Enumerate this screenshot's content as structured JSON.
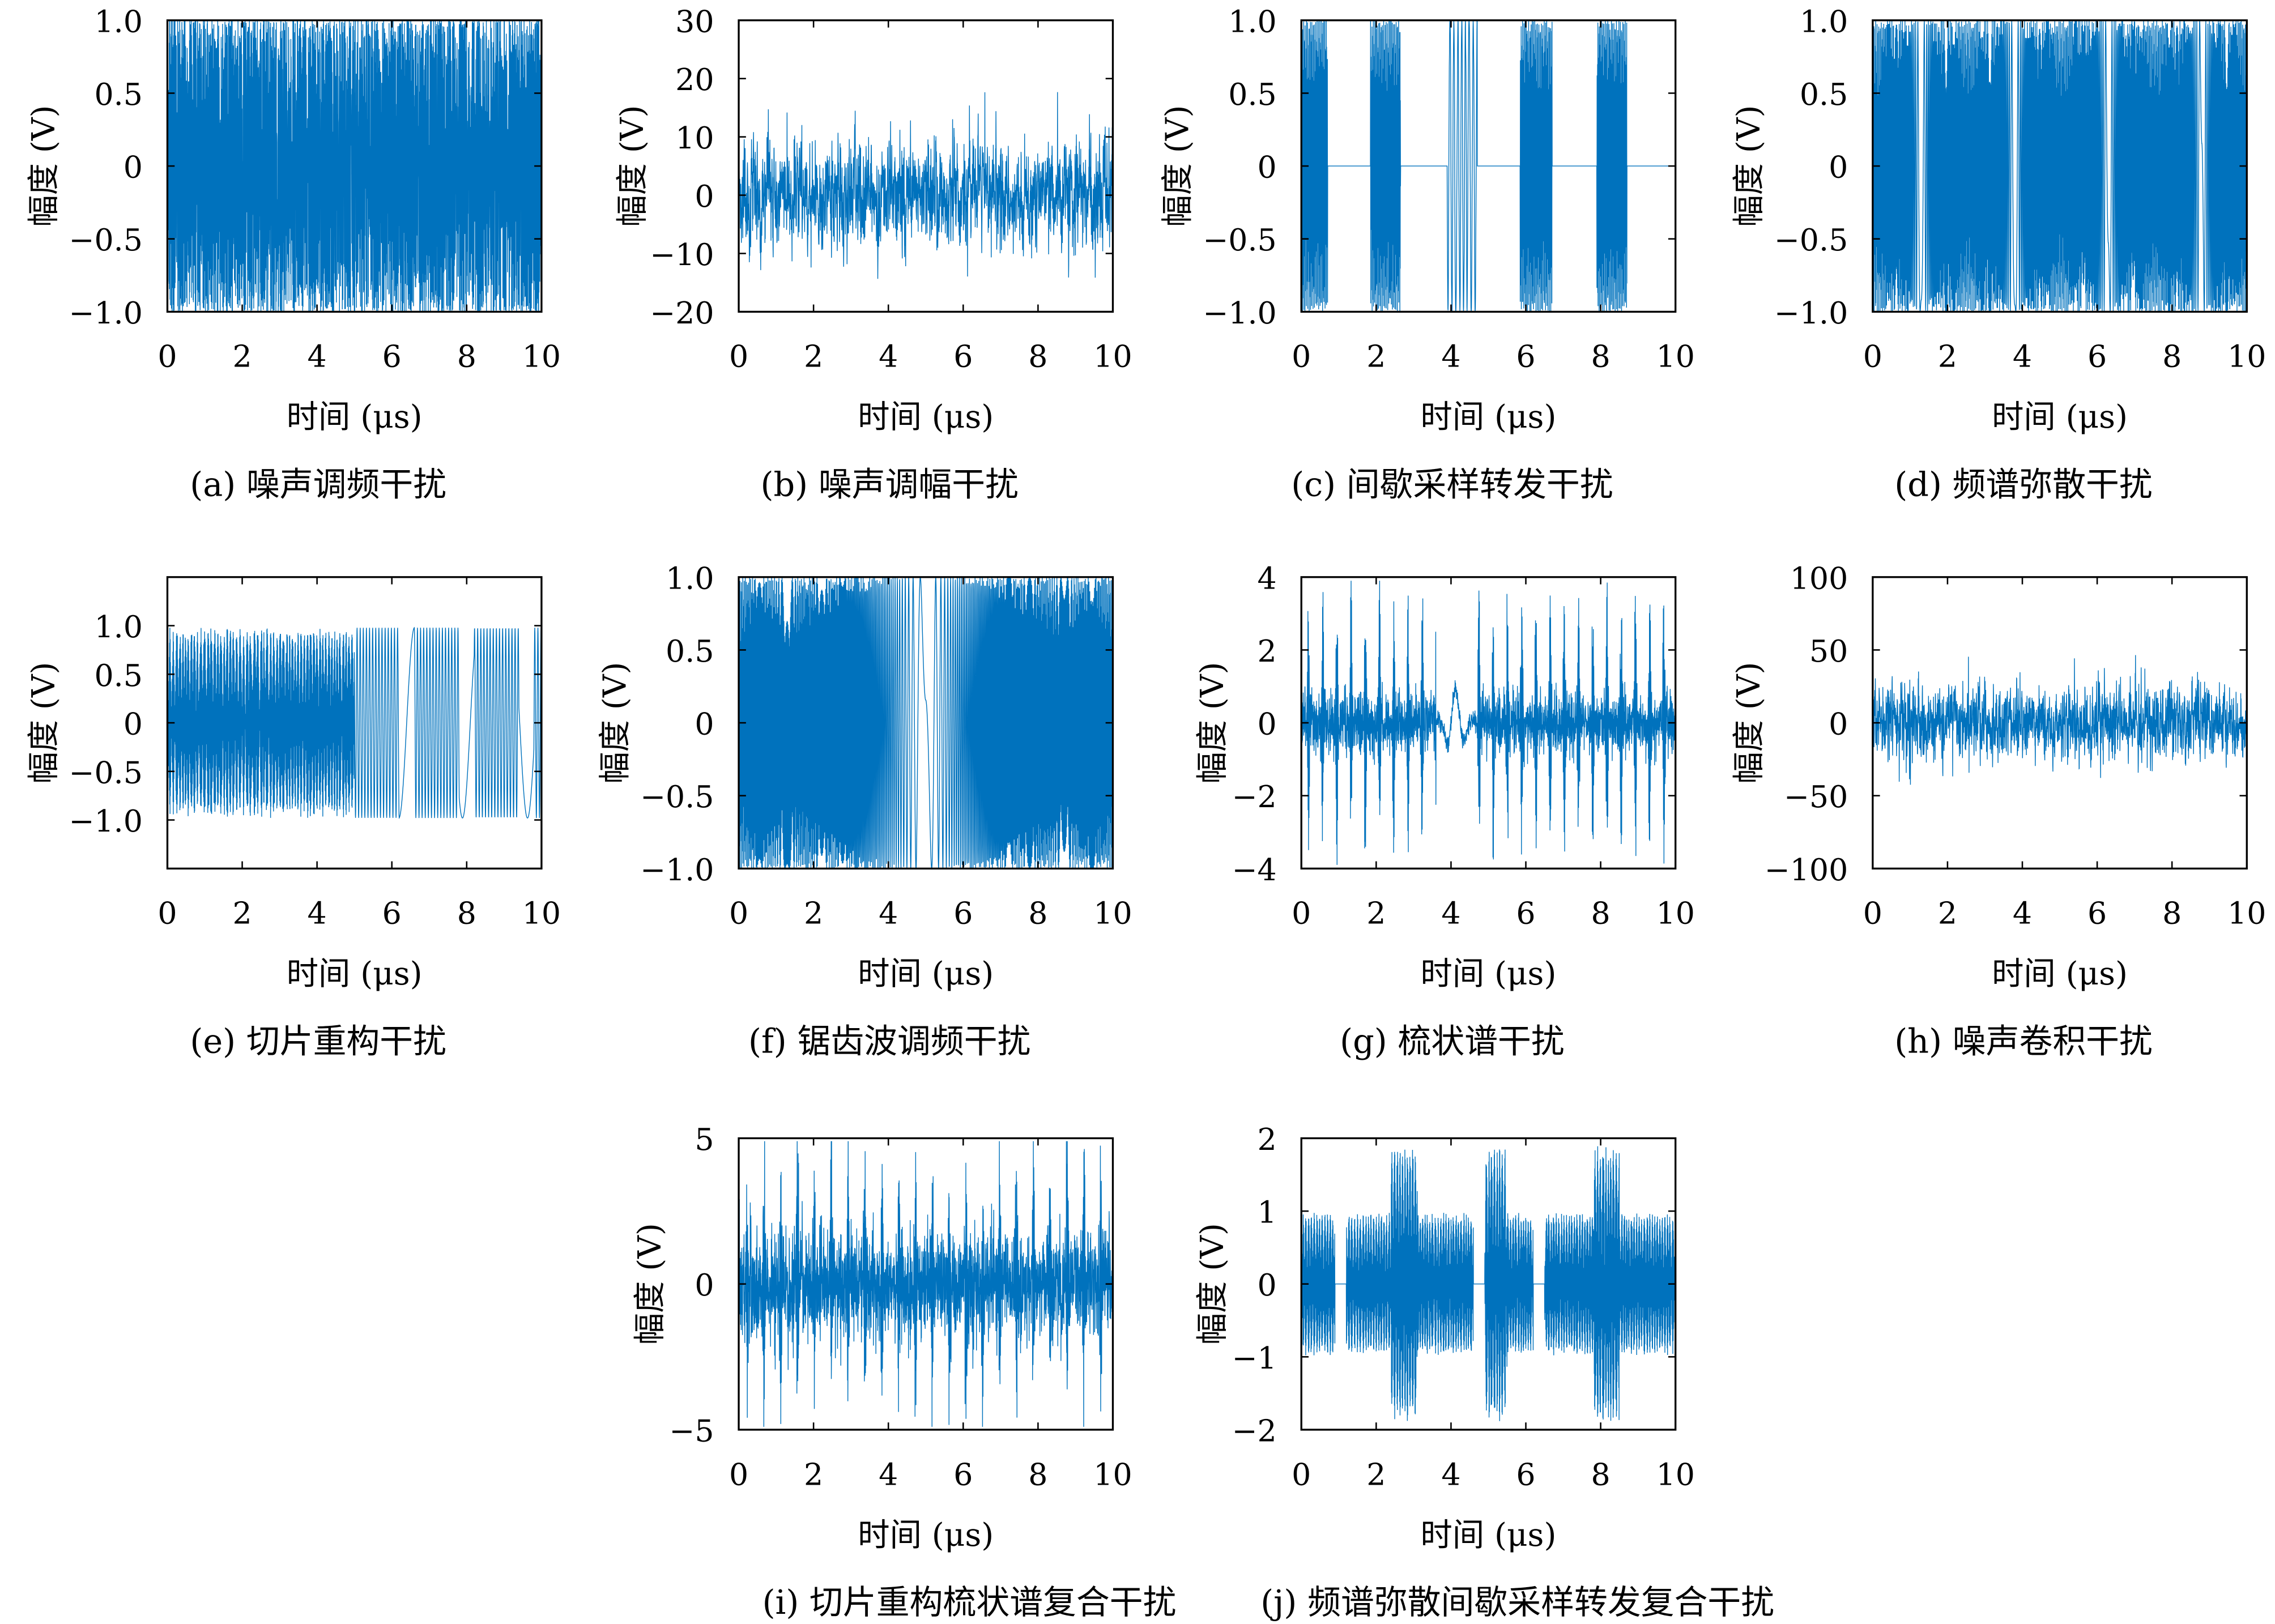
{
  "line_color": "#0072BD",
  "chart_data": [
    {
      "id": "a",
      "type": "line",
      "title": "(a) 噪声调频干扰",
      "xlabel": "时间 (μs)",
      "ylabel": "幅度 (V)",
      "xlim": [
        0,
        10
      ],
      "ylim": [
        -1,
        1
      ],
      "xticks": [
        "0",
        "2",
        "4",
        "6",
        "8",
        "10"
      ],
      "yticks": [
        {
          "v": 1,
          "t": "1.0"
        },
        {
          "v": 0.5,
          "t": "0.5"
        },
        {
          "v": 0,
          "t": "0"
        },
        {
          "v": -0.5,
          "t": "−0.5"
        },
        {
          "v": -1,
          "t": "−1.0"
        }
      ]
    },
    {
      "id": "b",
      "type": "line",
      "title": "(b) 噪声调幅干扰",
      "xlabel": "时间 (μs)",
      "ylabel": "幅度 (V)",
      "xlim": [
        0,
        10
      ],
      "ylim": [
        -20,
        30
      ],
      "xticks": [
        "0",
        "2",
        "4",
        "6",
        "8",
        "10"
      ],
      "yticks": [
        {
          "v": 30,
          "t": "30"
        },
        {
          "v": 20,
          "t": "20"
        },
        {
          "v": 10,
          "t": "10"
        },
        {
          "v": 0,
          "t": "0"
        },
        {
          "v": -10,
          "t": "−10"
        },
        {
          "v": -20,
          "t": "−20"
        }
      ]
    },
    {
      "id": "c",
      "type": "line",
      "title": "(c) 间歇采样转发干扰",
      "xlabel": "时间 (μs)",
      "ylabel": "幅度 (V)",
      "xlim": [
        0,
        10
      ],
      "ylim": [
        -1,
        1
      ],
      "xticks": [
        "0",
        "2",
        "4",
        "6",
        "8",
        "10"
      ],
      "yticks": [
        {
          "v": 1,
          "t": "1.0"
        },
        {
          "v": 0.5,
          "t": "0.5"
        },
        {
          "v": 0,
          "t": "0"
        },
        {
          "v": -0.5,
          "t": "−0.5"
        },
        {
          "v": -1,
          "t": "−1.0"
        }
      ],
      "sampling_windows": [
        [
          0,
          0.7
        ],
        [
          1.85,
          2.65
        ],
        [
          3.9,
          4.7
        ],
        [
          5.85,
          6.7
        ],
        [
          7.9,
          8.7
        ]
      ]
    },
    {
      "id": "d",
      "type": "line",
      "title": "(d) 频谱弥散干扰",
      "xlabel": "时间 (μs)",
      "ylabel": "幅度 (V)",
      "xlim": [
        0,
        10
      ],
      "ylim": [
        -1,
        1
      ],
      "xticks": [
        "0",
        "2",
        "4",
        "6",
        "8",
        "10"
      ],
      "yticks": [
        {
          "v": 1,
          "t": "1.0"
        },
        {
          "v": 0.5,
          "t": "0.5"
        },
        {
          "v": 0,
          "t": "0"
        },
        {
          "v": -0.5,
          "t": "−0.5"
        },
        {
          "v": -1,
          "t": "−1.0"
        }
      ]
    },
    {
      "id": "e",
      "type": "line",
      "title": "(e) 切片重构干扰",
      "xlabel": "时间 (μs)",
      "ylabel": "幅度 (V)",
      "xlim": [
        0,
        10
      ],
      "ylim": [
        -1.5,
        1.5
      ],
      "xticks": [
        "0",
        "2",
        "4",
        "6",
        "8",
        "10"
      ],
      "yticks": [
        {
          "v": 1,
          "t": "1.0"
        },
        {
          "v": 0.5,
          "t": "0.5"
        },
        {
          "v": 0,
          "t": "0"
        },
        {
          "v": -0.5,
          "t": "−0.5"
        },
        {
          "v": -1,
          "t": "−1.0"
        }
      ]
    },
    {
      "id": "f",
      "type": "line",
      "title": "(f) 锯齿波调频干扰",
      "xlabel": "时间 (μs)",
      "ylabel": "幅度 (V)",
      "xlim": [
        0,
        10
      ],
      "ylim": [
        -1,
        1
      ],
      "xticks": [
        "0",
        "2",
        "4",
        "6",
        "8",
        "10"
      ],
      "yticks": [
        {
          "v": 1,
          "t": "1.0"
        },
        {
          "v": 0.5,
          "t": "0.5"
        },
        {
          "v": 0,
          "t": "0"
        },
        {
          "v": -0.5,
          "t": "−0.5"
        },
        {
          "v": -1,
          "t": "−1.0"
        }
      ]
    },
    {
      "id": "g",
      "type": "line",
      "title": "(g) 梳状谱干扰",
      "xlabel": "时间 (μs)",
      "ylabel": "幅度 (V)",
      "xlim": [
        0,
        10
      ],
      "ylim": [
        -4,
        4
      ],
      "xticks": [
        "0",
        "2",
        "4",
        "6",
        "8",
        "10"
      ],
      "yticks": [
        {
          "v": 4,
          "t": "4"
        },
        {
          "v": 2,
          "t": "2"
        },
        {
          "v": 0,
          "t": "0"
        },
        {
          "v": -2,
          "t": "−2"
        },
        {
          "v": -4,
          "t": "−4"
        }
      ]
    },
    {
      "id": "h",
      "type": "line",
      "title": "(h) 噪声卷积干扰",
      "xlabel": "时间 (μs)",
      "ylabel": "幅度 (V)",
      "xlim": [
        0,
        10
      ],
      "ylim": [
        -100,
        100
      ],
      "xticks": [
        "0",
        "2",
        "4",
        "6",
        "8",
        "10"
      ],
      "yticks": [
        {
          "v": 100,
          "t": "100"
        },
        {
          "v": 50,
          "t": "50"
        },
        {
          "v": 0,
          "t": "0"
        },
        {
          "v": -50,
          "t": "−50"
        },
        {
          "v": -100,
          "t": "−100"
        }
      ]
    },
    {
      "id": "i",
      "type": "line",
      "title": "(i) 切片重构梳状谱复合干扰",
      "xlabel": "时间 (μs)",
      "ylabel": "幅度 (V)",
      "xlim": [
        0,
        10
      ],
      "ylim": [
        -5,
        5
      ],
      "xticks": [
        "0",
        "2",
        "4",
        "6",
        "8",
        "10"
      ],
      "yticks": [
        {
          "v": 5,
          "t": "5"
        },
        {
          "v": 0,
          "t": "0"
        },
        {
          "v": -5,
          "t": "−5"
        }
      ]
    },
    {
      "id": "j",
      "type": "line",
      "title": "(j) 频谱弥散间歇采样转发复合干扰",
      "xlabel": "时间 (μs)",
      "ylabel": "幅度 (V)",
      "xlim": [
        0,
        10
      ],
      "ylim": [
        -2,
        2
      ],
      "xticks": [
        "0",
        "2",
        "4",
        "6",
        "8",
        "10"
      ],
      "yticks": [
        {
          "v": 2,
          "t": "2"
        },
        {
          "v": 1,
          "t": "1"
        },
        {
          "v": 0,
          "t": "0"
        },
        {
          "v": -1,
          "t": "−1"
        },
        {
          "v": -2,
          "t": "−2"
        }
      ]
    }
  ]
}
